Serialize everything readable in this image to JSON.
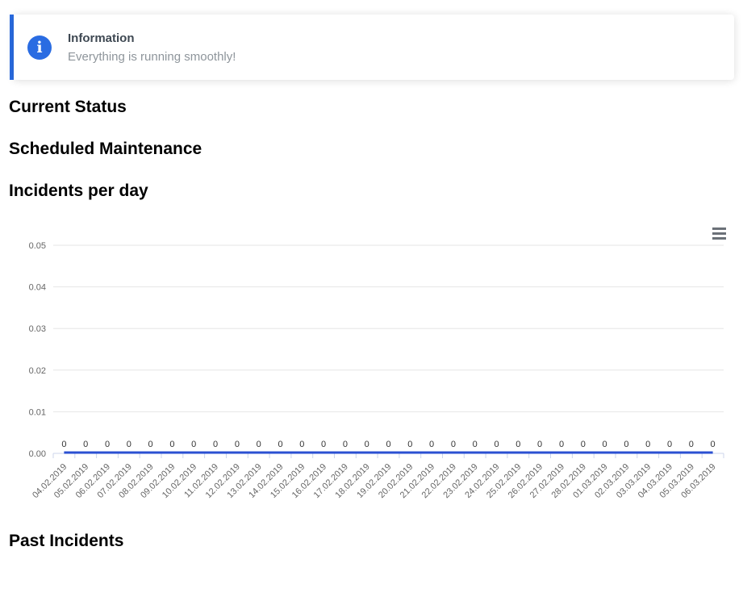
{
  "alert": {
    "title": "Information",
    "message": "Everything is running smoothly!",
    "icon_glyph": "i",
    "accent_color": "#2a6ce2"
  },
  "headings": {
    "current_status": "Current Status",
    "scheduled_maintenance": "Scheduled Maintenance",
    "incidents_per_day": "Incidents per day",
    "past_incidents": "Past Incidents"
  },
  "icons": {
    "info": "info-icon",
    "chart_menu": "hamburger-menu-icon"
  },
  "chart_data": {
    "type": "line",
    "title": "",
    "xlabel": "",
    "ylabel": "",
    "categories": [
      "04.02.2019",
      "05.02.2019",
      "06.02.2019",
      "07.02.2019",
      "08.02.2019",
      "09.02.2019",
      "10.02.2019",
      "11.02.2019",
      "12.02.2019",
      "13.02.2019",
      "14.02.2019",
      "15.02.2019",
      "16.02.2019",
      "17.02.2019",
      "18.02.2019",
      "19.02.2019",
      "20.02.2019",
      "21.02.2019",
      "22.02.2019",
      "23.02.2019",
      "24.02.2019",
      "25.02.2019",
      "26.02.2019",
      "27.02.2019",
      "28.02.2019",
      "01.03.2019",
      "02.03.2019",
      "03.03.2019",
      "04.03.2019",
      "05.03.2019",
      "06.03.2019"
    ],
    "values": [
      0,
      0,
      0,
      0,
      0,
      0,
      0,
      0,
      0,
      0,
      0,
      0,
      0,
      0,
      0,
      0,
      0,
      0,
      0,
      0,
      0,
      0,
      0,
      0,
      0,
      0,
      0,
      0,
      0,
      0,
      0
    ],
    "data_labels": true,
    "ylim": [
      0,
      0.05
    ],
    "ytick_labels": [
      "0.00",
      "0.01",
      "0.02",
      "0.03",
      "0.04",
      "0.05"
    ],
    "grid": true,
    "legend": "none",
    "colors": {
      "series": "#2b50d2",
      "grid": "#e6e6e6",
      "axis": "#ccd6eb",
      "tick": "#ccd6eb",
      "label": "#666666"
    }
  }
}
